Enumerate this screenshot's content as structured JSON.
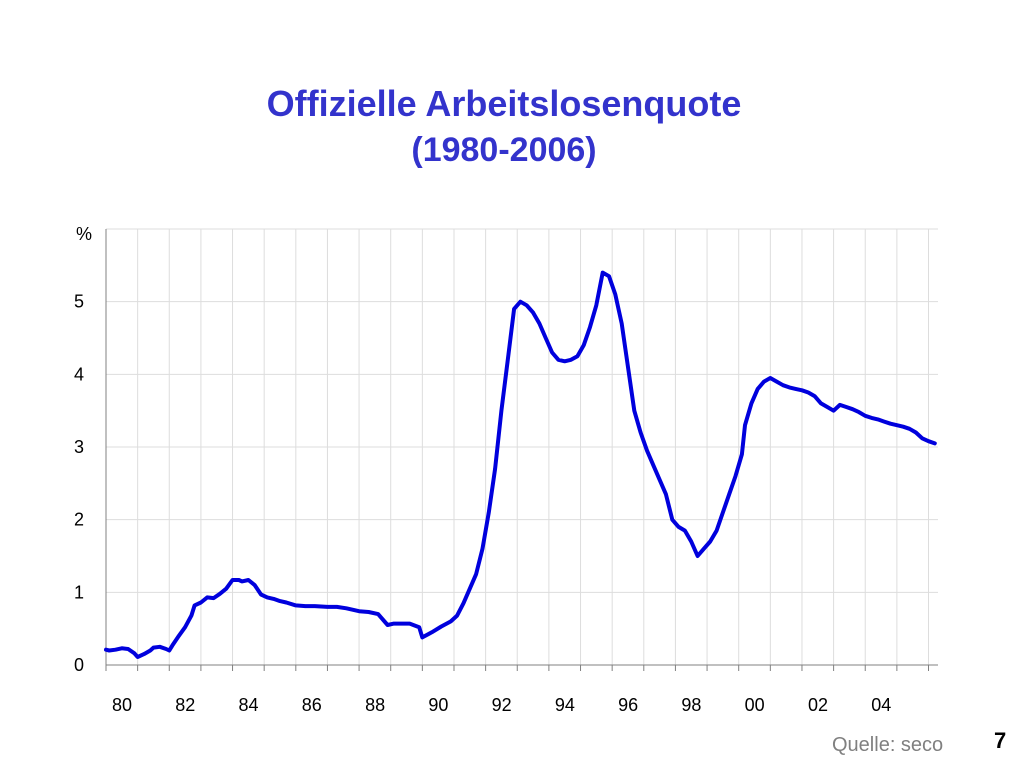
{
  "slide": {
    "source": "Quelle: seco",
    "page_number": "7"
  },
  "colors": {
    "title": "#3333cc",
    "line": "#0000dd",
    "grid": "#dddddd"
  },
  "chart_data": {
    "type": "line",
    "title": "Offizielle Arbeitslosenquote",
    "subtitle": "(1980-2006)",
    "ylabel": "%",
    "xlabel": "",
    "ylim": [
      0,
      6
    ],
    "xlim": [
      1980,
      2006.3
    ],
    "yticks": [
      0,
      1,
      2,
      3,
      4,
      5
    ],
    "xticks": [
      {
        "x": 1980,
        "label": "80"
      },
      {
        "x": 1982,
        "label": "82"
      },
      {
        "x": 1984,
        "label": "84"
      },
      {
        "x": 1986,
        "label": "86"
      },
      {
        "x": 1988,
        "label": "88"
      },
      {
        "x": 1990,
        "label": "90"
      },
      {
        "x": 1992,
        "label": "92"
      },
      {
        "x": 1994,
        "label": "94"
      },
      {
        "x": 1996,
        "label": "96"
      },
      {
        "x": 1998,
        "label": "98"
      },
      {
        "x": 2000,
        "label": "00"
      },
      {
        "x": 2002,
        "label": "02"
      },
      {
        "x": 2004,
        "label": "04"
      }
    ],
    "grid": true,
    "series": [
      {
        "x": [
          1980.0,
          1980.1,
          1980.3,
          1980.5,
          1980.7,
          1980.9,
          1981.0,
          1981.2,
          1981.4,
          1981.5,
          1981.7,
          1981.9,
          1982.0,
          1982.1,
          1982.3,
          1982.5,
          1982.7,
          1982.8,
          1983.0,
          1983.2,
          1983.4,
          1983.6,
          1983.8,
          1984.0,
          1984.2,
          1984.3,
          1984.5,
          1984.7,
          1984.9,
          1985.1,
          1985.3,
          1985.5,
          1985.7,
          1986.0,
          1986.3,
          1986.6,
          1987.0,
          1987.3,
          1987.6,
          1988.0,
          1988.3,
          1988.6,
          1988.9,
          1989.1,
          1989.3,
          1989.6,
          1989.9,
          1990.0,
          1990.3,
          1990.6,
          1990.9,
          1991.1,
          1991.3,
          1991.5,
          1991.7,
          1991.9,
          1992.1,
          1992.3,
          1992.5,
          1992.7,
          1992.9,
          1993.1,
          1993.3,
          1993.5,
          1993.7,
          1993.9,
          1994.1,
          1994.3,
          1994.5,
          1994.7,
          1994.9,
          1995.1,
          1995.3,
          1995.5,
          1995.7,
          1995.9,
          1996.1,
          1996.3,
          1996.5,
          1996.7,
          1996.9,
          1997.1,
          1997.3,
          1997.5,
          1997.7,
          1997.9,
          1998.1,
          1998.3,
          1998.5,
          1998.7,
          1998.9,
          1999.1,
          1999.3,
          1999.5,
          1999.7,
          1999.9,
          2000.1,
          2000.2,
          2000.4,
          2000.6,
          2000.8,
          2001.0,
          2001.2,
          2001.4,
          2001.6,
          2001.8,
          2002.0,
          2002.2,
          2002.4,
          2002.6,
          2002.8,
          2003.0,
          2003.2,
          2003.4,
          2003.6,
          2003.8,
          2004.0,
          2004.2,
          2004.4,
          2004.6,
          2004.8,
          2005.0,
          2005.2,
          2005.4,
          2005.6,
          2005.8,
          2006.0,
          2006.2
        ],
        "values": [
          0.21,
          0.2,
          0.21,
          0.23,
          0.22,
          0.16,
          0.11,
          0.15,
          0.2,
          0.24,
          0.25,
          0.22,
          0.2,
          0.27,
          0.4,
          0.52,
          0.68,
          0.82,
          0.86,
          0.93,
          0.92,
          0.98,
          1.05,
          1.17,
          1.17,
          1.15,
          1.17,
          1.1,
          0.97,
          0.93,
          0.91,
          0.88,
          0.86,
          0.82,
          0.81,
          0.81,
          0.8,
          0.8,
          0.78,
          0.74,
          0.73,
          0.7,
          0.55,
          0.57,
          0.57,
          0.57,
          0.52,
          0.38,
          0.45,
          0.53,
          0.6,
          0.68,
          0.85,
          1.05,
          1.25,
          1.6,
          2.1,
          2.7,
          3.5,
          4.2,
          4.9,
          5.0,
          4.95,
          4.85,
          4.7,
          4.5,
          4.3,
          4.2,
          4.18,
          4.2,
          4.25,
          4.4,
          4.65,
          4.95,
          5.4,
          5.35,
          5.1,
          4.7,
          4.1,
          3.5,
          3.2,
          2.95,
          2.75,
          2.55,
          2.35,
          2.0,
          1.9,
          1.85,
          1.7,
          1.5,
          1.6,
          1.7,
          1.85,
          2.1,
          2.35,
          2.6,
          2.9,
          3.3,
          3.6,
          3.8,
          3.9,
          3.95,
          3.9,
          3.85,
          3.82,
          3.8,
          3.78,
          3.75,
          3.7,
          3.6,
          3.55,
          3.5,
          3.58,
          3.55,
          3.52,
          3.48,
          3.43,
          3.4,
          3.38,
          3.35,
          3.32,
          3.3,
          3.28,
          3.25,
          3.2,
          3.12,
          3.08,
          3.05
        ]
      }
    ]
  }
}
